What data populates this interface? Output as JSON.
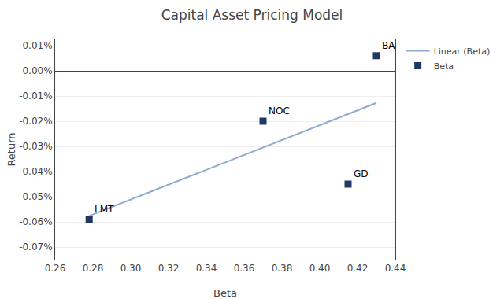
{
  "chart_data": {
    "type": "scatter",
    "title": "Capital Asset Pricing Model",
    "xlabel": "Beta",
    "ylabel": "Return",
    "series": [
      {
        "name": "Beta",
        "type": "scatter",
        "marker": "square",
        "color": "#1F3864",
        "x": [
          0.278,
          0.37,
          0.415,
          0.43
        ],
        "values": [
          -0.00059,
          -0.0002,
          -0.00045,
          6e-05
        ]
      },
      {
        "name": "Linear (Beta)",
        "type": "line",
        "line_style": "solid",
        "color": "#8EAACC",
        "x": [
          0.278,
          0.43
        ],
        "values": [
          -0.000576172,
          -0.000127478
        ]
      }
    ],
    "annotations": [
      {
        "text": "LMT",
        "x": 0.278,
        "y": -0.00059
      },
      {
        "text": "NOC",
        "x": 0.37,
        "y": -0.0002
      },
      {
        "text": "GD",
        "x": 0.415,
        "y": -0.00045
      },
      {
        "text": "BA",
        "x": 0.43,
        "y": 6e-05
      }
    ],
    "xlim": [
      0.26,
      0.44
    ],
    "ylim": [
      -0.00075,
      0.000125
    ],
    "xticks": [
      0.26,
      0.28,
      {
        "value": 0.3,
        "label": "0.30"
      },
      0.32,
      0.34,
      0.36,
      0.38,
      {
        "value": 0.4,
        "label": "0.40"
      },
      0.42,
      0.44
    ],
    "yticks": [
      {
        "value": -0.0007,
        "label": "-0.07%"
      },
      {
        "value": -0.0006,
        "label": "-0.06%"
      },
      {
        "value": -0.0005,
        "label": "-0.05%"
      },
      {
        "value": -0.0004,
        "label": "-0.04%"
      },
      {
        "value": -0.0003,
        "label": "-0.03%"
      },
      {
        "value": -0.0002,
        "label": "-0.02%"
      },
      {
        "value": -0.0001,
        "label": "-0.01%"
      },
      {
        "value": 0,
        "label": "0.00%"
      },
      {
        "value": 0.0001,
        "label": "0.01%"
      }
    ],
    "grid": "y",
    "legend": "right"
  }
}
